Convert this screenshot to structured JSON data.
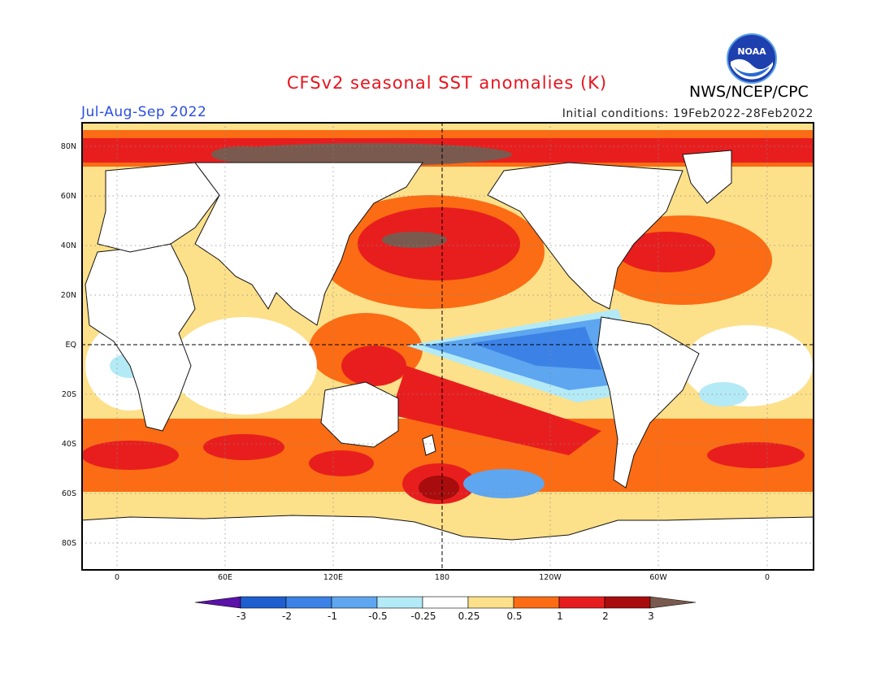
{
  "title": "CFSv2 seasonal SST anomalies (K)",
  "agency": "NWS/NCEP/CPC",
  "logo_text": "NOAA",
  "season": "Jul-Aug-Sep 2022",
  "initial_conditions": "Initial conditions: 19Feb2022-28Feb2022",
  "lat_labels": [
    "80N",
    "60N",
    "40N",
    "20N",
    "EQ",
    "20S",
    "40S",
    "60S",
    "80S"
  ],
  "lon_labels": [
    "0",
    "60E",
    "120E",
    "180",
    "120W",
    "60W",
    "0"
  ],
  "colorbar": {
    "labels": [
      "-3",
      "-2",
      "-1",
      "-0.5",
      "-0.25",
      "0.25",
      "0.5",
      "1",
      "2",
      "3"
    ],
    "colors": [
      "#5a12a8",
      "#1e5fd0",
      "#3c82e6",
      "#5ea6f0",
      "#b4eaf6",
      "#ffffff",
      "#fde08a",
      "#fb6c14",
      "#e81e1e",
      "#a80c0c",
      "#7a5a4e"
    ]
  },
  "map_colors": {
    "frame": "#000000",
    "land": "#ffffff",
    "coast": "#111111",
    "grid": "#888888"
  }
}
